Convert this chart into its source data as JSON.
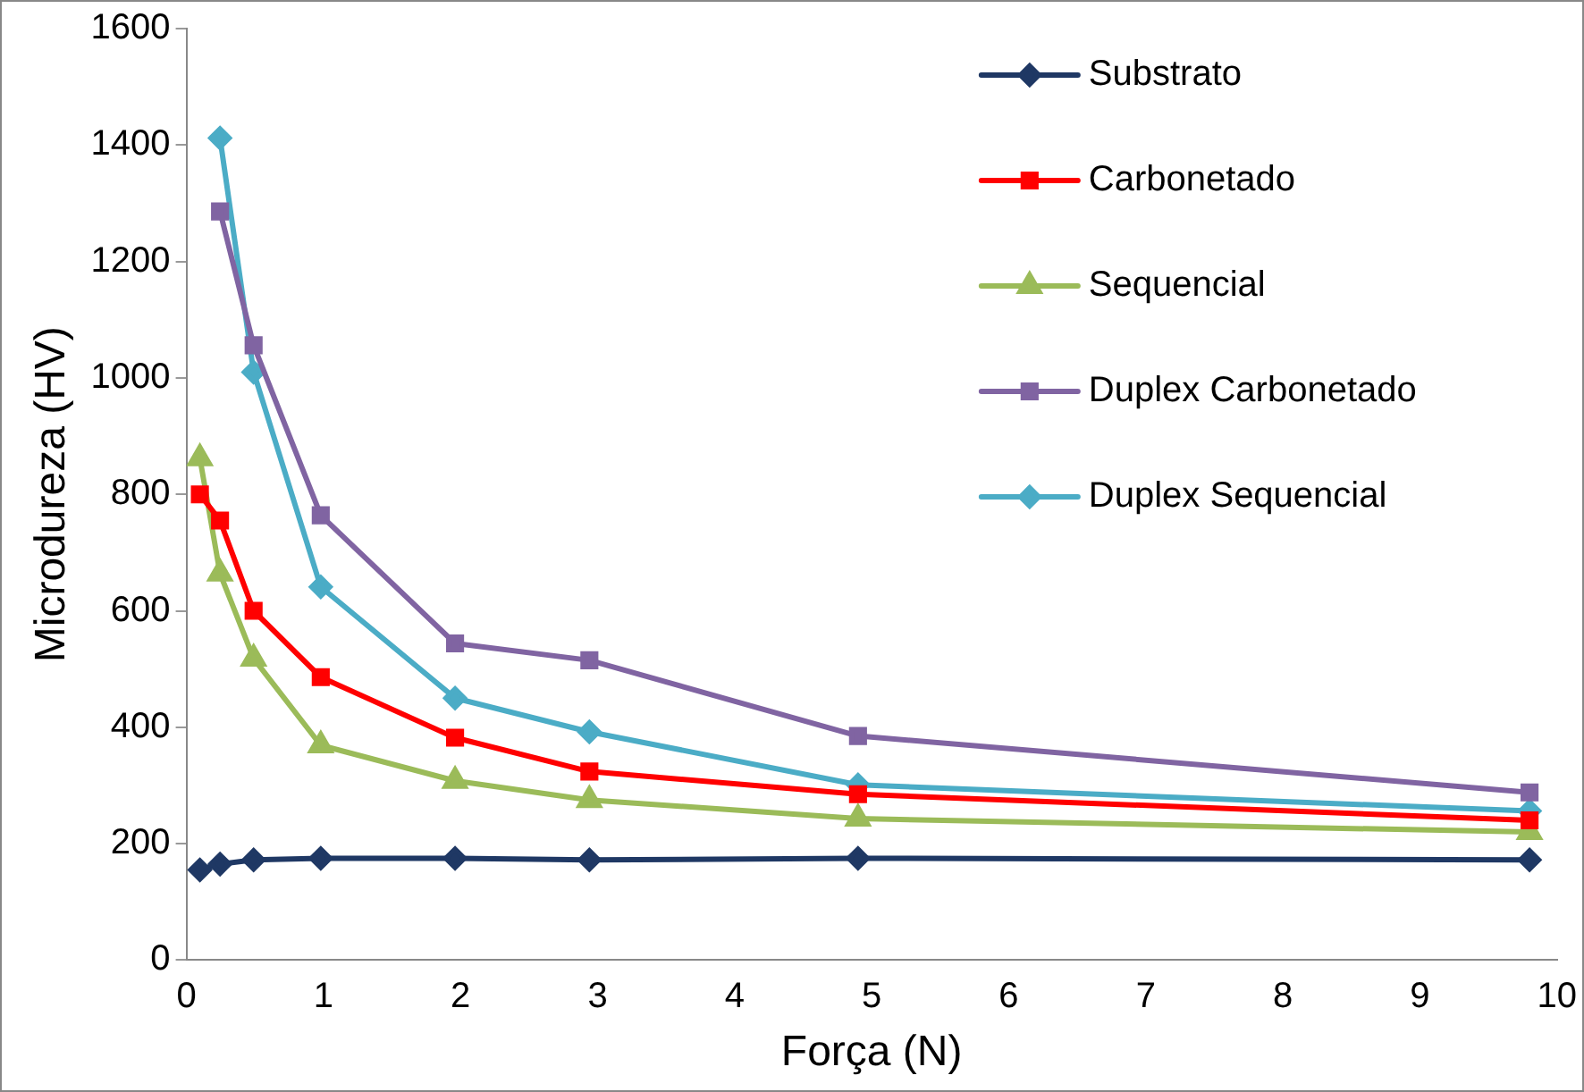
{
  "chart_data": {
    "type": "line",
    "xlabel": "Força (N)",
    "ylabel": "Microdureza (HV)",
    "xlim": [
      0,
      10
    ],
    "xticks": [
      0,
      1,
      2,
      3,
      4,
      5,
      6,
      7,
      8,
      9,
      10
    ],
    "ylim": [
      0,
      1600
    ],
    "yticks": [
      0,
      200,
      400,
      600,
      800,
      1000,
      1200,
      1400,
      1600
    ],
    "grid": false,
    "legend": "top right",
    "series": [
      {
        "name": "Substrato",
        "color": "#1f3864",
        "marker": "diamond",
        "x": [
          0.098,
          0.245,
          0.49,
          0.98,
          1.96,
          2.94,
          4.9,
          9.8
        ],
        "values": [
          155,
          165,
          172,
          175,
          175,
          172,
          175,
          172
        ]
      },
      {
        "name": "Carbonetado",
        "color": "#ff0000",
        "marker": "square",
        "x": [
          0.098,
          0.245,
          0.49,
          0.98,
          1.96,
          2.94,
          4.9,
          9.8
        ],
        "values": [
          800,
          755,
          600,
          486,
          382,
          324,
          285,
          240
        ]
      },
      {
        "name": "Sequencial",
        "color": "#9bbb59",
        "marker": "triangle",
        "x": [
          0.098,
          0.245,
          0.49,
          0.98,
          1.96,
          2.94,
          4.9,
          9.8
        ],
        "values": [
          862,
          664,
          518,
          369,
          308,
          275,
          243,
          220
        ]
      },
      {
        "name": "Duplex Carbonetado",
        "color": "#8064a2",
        "marker": "square",
        "x": [
          0.245,
          0.49,
          0.98,
          1.96,
          2.94,
          4.9,
          9.8
        ],
        "values": [
          1286,
          1056,
          764,
          544,
          515,
          385,
          288
        ]
      },
      {
        "name": "Duplex Sequencial",
        "color": "#4bacc6",
        "marker": "diamond",
        "x": [
          0.245,
          0.49,
          0.98,
          1.96,
          2.94,
          4.9,
          9.8
        ],
        "values": [
          1412,
          1010,
          641,
          450,
          392,
          301,
          256
        ]
      }
    ]
  }
}
